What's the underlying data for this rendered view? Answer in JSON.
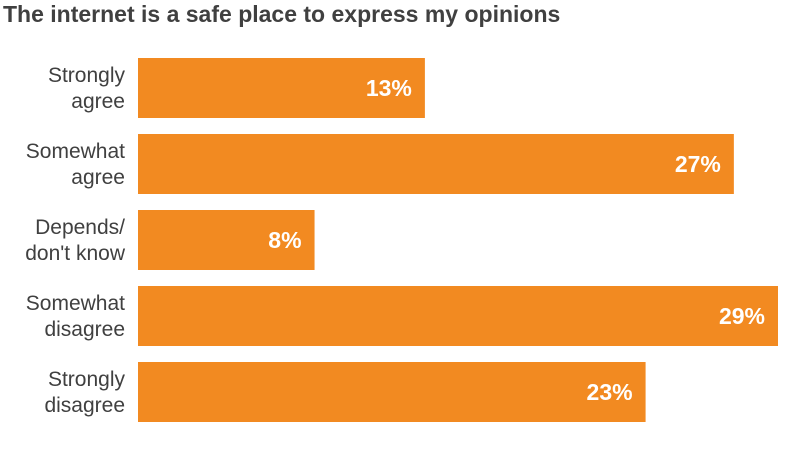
{
  "chart_data": {
    "type": "bar",
    "orientation": "horizontal",
    "title": "The internet is a safe place to express my opinions",
    "categories": [
      [
        "Strongly",
        "agree"
      ],
      [
        "Somewhat",
        "agree"
      ],
      [
        "Depends/",
        "don't know"
      ],
      [
        "Somewhat",
        "disagree"
      ],
      [
        "Strongly",
        "disagree"
      ]
    ],
    "values": [
      13,
      27,
      8,
      29,
      23
    ],
    "value_labels": [
      "13%",
      "27%",
      "8%",
      "29%",
      "23%"
    ],
    "unit": "%",
    "xlim": [
      0,
      29
    ],
    "grid": false,
    "legend": "none",
    "colors": {
      "bar": "#f28a21",
      "text": "#404040",
      "value_text": "#ffffff"
    }
  }
}
